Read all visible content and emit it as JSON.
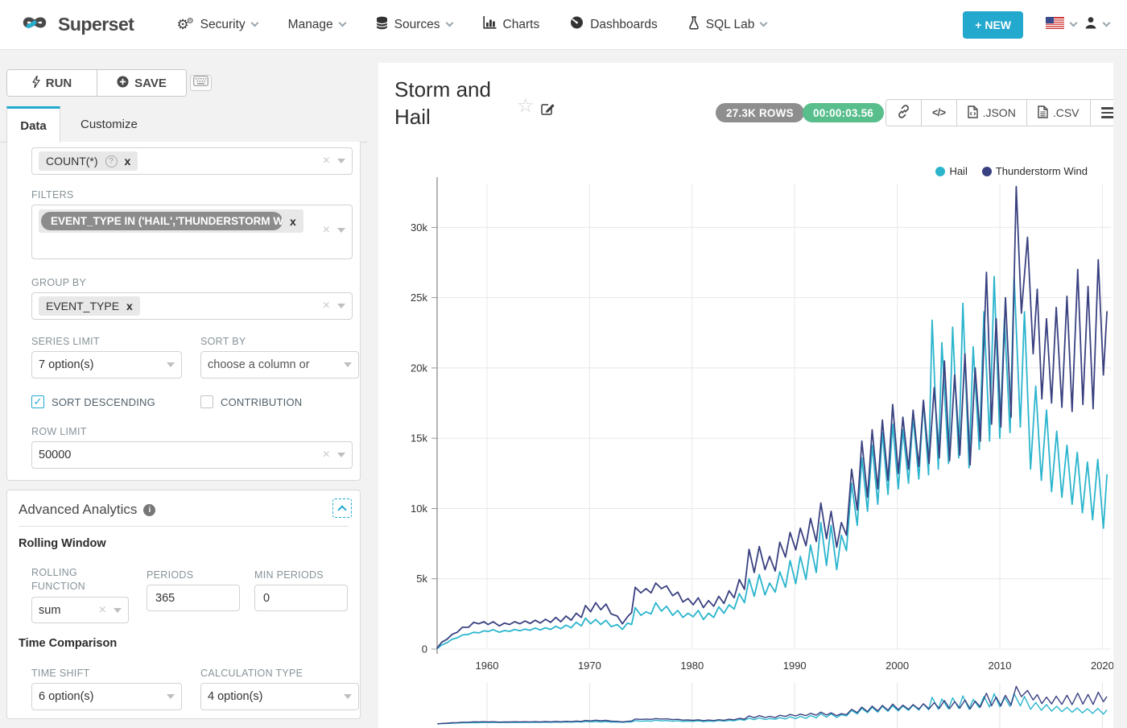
{
  "navbar": {
    "brand": "Superset",
    "security": "Security",
    "manage": "Manage",
    "sources": "Sources",
    "charts": "Charts",
    "dashboards": "Dashboards",
    "sql_lab": "SQL Lab",
    "new_button": "+ NEW"
  },
  "toolbar": {
    "run_label": "RUN",
    "save_label": "SAVE"
  },
  "tabs": {
    "data": "Data",
    "customize": "Customize"
  },
  "query": {
    "metric_chip": "COUNT(*)",
    "filters_label": "FILTERS",
    "filter_chip": "EVENT_TYPE IN ('HAIL','THUNDERSTORM WI",
    "group_by_label": "GROUP BY",
    "group_by_chip": "EVENT_TYPE",
    "series_limit_label": "SERIES LIMIT",
    "series_limit_value": "7 option(s)",
    "sort_by_label": "SORT BY",
    "sort_by_placeholder": "choose a column or",
    "sort_descending_label": "SORT DESCENDING",
    "contribution_label": "CONTRIBUTION",
    "row_limit_label": "ROW LIMIT",
    "row_limit_value": "50000"
  },
  "advanced": {
    "title": "Advanced Analytics",
    "rolling_window_title": "Rolling Window",
    "rolling_function_label": "ROLLING FUNCTION",
    "rolling_function_value": "sum",
    "periods_label": "PERIODS",
    "periods_value": "365",
    "min_periods_label": "MIN PERIODS",
    "min_periods_value": "0",
    "time_comparison_title": "Time Comparison",
    "time_shift_label": "TIME SHIFT",
    "time_shift_value": "6 option(s)",
    "calculation_type_label": "CALCULATION TYPE",
    "calculation_type_value": "4 option(s)"
  },
  "chart_header": {
    "title": "Storm and Hail",
    "rows_badge": "27.3K ROWS",
    "duration_badge": "00:00:03.56",
    "json_button": ".JSON",
    "csv_button": ".CSV"
  },
  "icons": {
    "star": "☆",
    "code": "</>"
  },
  "colors": {
    "accent": "#23a8ce",
    "hail_line": "#2bb5cd",
    "thunderstorm_line": "#3a4180",
    "badge_green": "#57be8c",
    "badge_gray": "#8e8e8e"
  },
  "chart_data": {
    "type": "line",
    "title": "Storm and Hail",
    "xlabel": "",
    "ylabel": "",
    "grid": true,
    "legend_position": "top-right",
    "xlim": [
      1955.1,
      2020.6
    ],
    "ylim": [
      0,
      33100
    ],
    "x_tick_years": [
      1960,
      1970,
      1980,
      1990,
      2000,
      2010,
      2020
    ],
    "x_tick_labels": [
      "1960",
      "1970",
      "1980",
      "1990",
      "2000",
      "2010",
      "2020"
    ],
    "y_tick_values": [
      0,
      5000,
      10000,
      15000,
      20000,
      25000,
      30000
    ],
    "y_tick_labels": [
      "0",
      "5k",
      "10k",
      "15k",
      "20k",
      "25k",
      "30k"
    ],
    "series": [
      {
        "name": "Hail",
        "color": "#2bb5cd",
        "points": [
          [
            1955.15,
            50
          ],
          [
            1955.6,
            300
          ],
          [
            1956.1,
            450
          ],
          [
            1956.6,
            700
          ],
          [
            1957.1,
            800
          ],
          [
            1957.6,
            1000
          ],
          [
            1958.2,
            1050
          ],
          [
            1958.7,
            1200
          ],
          [
            1959.2,
            1150
          ],
          [
            1959.7,
            1300
          ],
          [
            1960.1,
            1250
          ],
          [
            1960.6,
            1380
          ],
          [
            1961.2,
            1200
          ],
          [
            1961.7,
            1320
          ],
          [
            1962.2,
            1260
          ],
          [
            1962.7,
            1400
          ],
          [
            1963.2,
            1300
          ],
          [
            1963.7,
            1420
          ],
          [
            1964.2,
            1340
          ],
          [
            1964.7,
            1500
          ],
          [
            1965.2,
            1360
          ],
          [
            1965.7,
            1520
          ],
          [
            1966.2,
            1400
          ],
          [
            1966.7,
            1620
          ],
          [
            1967.2,
            1450
          ],
          [
            1967.7,
            1700
          ],
          [
            1968.2,
            1520
          ],
          [
            1968.7,
            1900
          ],
          [
            1969.2,
            1650
          ],
          [
            1969.6,
            2200
          ],
          [
            1970.1,
            1800
          ],
          [
            1970.6,
            2100
          ],
          [
            1971.1,
            1750
          ],
          [
            1971.6,
            2050
          ],
          [
            1972.1,
            1600
          ],
          [
            1972.7,
            1750
          ],
          [
            1973.2,
            1400
          ],
          [
            1973.7,
            1850
          ],
          [
            1974.1,
            1750
          ],
          [
            1974.45,
            2950
          ],
          [
            1975.0,
            2400
          ],
          [
            1975.5,
            2650
          ],
          [
            1976.0,
            2500
          ],
          [
            1976.45,
            3300
          ],
          [
            1977.0,
            2700
          ],
          [
            1977.5,
            3050
          ],
          [
            1978.1,
            2400
          ],
          [
            1978.6,
            2750
          ],
          [
            1979.1,
            2250
          ],
          [
            1979.6,
            2550
          ],
          [
            1980.1,
            2300
          ],
          [
            1980.6,
            2750
          ],
          [
            1981.1,
            2100
          ],
          [
            1981.6,
            2550
          ],
          [
            1982.1,
            2250
          ],
          [
            1982.6,
            3000
          ],
          [
            1983.1,
            2550
          ],
          [
            1983.6,
            3150
          ],
          [
            1984.1,
            2850
          ],
          [
            1984.6,
            3950
          ],
          [
            1985.1,
            3300
          ],
          [
            1985.55,
            5000
          ],
          [
            1986.05,
            3750
          ],
          [
            1986.55,
            5300
          ],
          [
            1987.1,
            3850
          ],
          [
            1987.55,
            4700
          ],
          [
            1988.1,
            4050
          ],
          [
            1988.55,
            5500
          ],
          [
            1989.1,
            4400
          ],
          [
            1989.55,
            6300
          ],
          [
            1990.1,
            4650
          ],
          [
            1990.55,
            6600
          ],
          [
            1991.1,
            4950
          ],
          [
            1991.55,
            7400
          ],
          [
            1992.1,
            5450
          ],
          [
            1992.55,
            9000
          ],
          [
            1993.1,
            5950
          ],
          [
            1993.55,
            8800
          ],
          [
            1994.1,
            5650
          ],
          [
            1994.55,
            8100
          ],
          [
            1995.05,
            7000
          ],
          [
            1995.55,
            11800
          ],
          [
            1996.1,
            8800
          ],
          [
            1996.55,
            13600
          ],
          [
            1997.1,
            9800
          ],
          [
            1997.55,
            14500
          ],
          [
            1998.1,
            10300
          ],
          [
            1998.55,
            15400
          ],
          [
            1999.1,
            11000
          ],
          [
            1999.55,
            16000
          ],
          [
            2000.1,
            11400
          ],
          [
            2000.55,
            15600
          ],
          [
            2001.1,
            11800
          ],
          [
            2001.55,
            16500
          ],
          [
            2002.1,
            12100
          ],
          [
            2002.55,
            17600
          ],
          [
            2003.05,
            12400
          ],
          [
            2003.4,
            23400
          ],
          [
            2004.0,
            12800
          ],
          [
            2004.35,
            21800
          ],
          [
            2005.0,
            13200
          ],
          [
            2005.4,
            22900
          ],
          [
            2006.0,
            13600
          ],
          [
            2006.4,
            24600
          ],
          [
            2007.0,
            12900
          ],
          [
            2007.4,
            21500
          ],
          [
            2008.0,
            14200
          ],
          [
            2008.45,
            24000
          ],
          [
            2009.0,
            14800
          ],
          [
            2009.45,
            26500
          ],
          [
            2010.0,
            15000
          ],
          [
            2010.45,
            23500
          ],
          [
            2011.0,
            15400
          ],
          [
            2011.4,
            26500
          ],
          [
            2012.0,
            15800
          ],
          [
            2012.4,
            24000
          ],
          [
            2013.0,
            12800
          ],
          [
            2013.5,
            18700
          ],
          [
            2014.05,
            12000
          ],
          [
            2014.55,
            17000
          ],
          [
            2015.05,
            11200
          ],
          [
            2015.55,
            15500
          ],
          [
            2016.05,
            10800
          ],
          [
            2016.55,
            14500
          ],
          [
            2017.05,
            10300
          ],
          [
            2017.55,
            14000
          ],
          [
            2018.05,
            9700
          ],
          [
            2018.55,
            13300
          ],
          [
            2019.05,
            9200
          ],
          [
            2019.55,
            13500
          ],
          [
            2020.1,
            8600
          ],
          [
            2020.45,
            12400
          ]
        ]
      },
      {
        "name": "Thunderstorm Wind",
        "color": "#3a4180",
        "points": [
          [
            1955.15,
            80
          ],
          [
            1955.6,
            500
          ],
          [
            1956.1,
            700
          ],
          [
            1956.6,
            1050
          ],
          [
            1957.1,
            1200
          ],
          [
            1957.6,
            1550
          ],
          [
            1958.2,
            1550
          ],
          [
            1958.7,
            1900
          ],
          [
            1959.2,
            1800
          ],
          [
            1959.7,
            1950
          ],
          [
            1960.1,
            1750
          ],
          [
            1960.6,
            1950
          ],
          [
            1961.2,
            1650
          ],
          [
            1961.7,
            1850
          ],
          [
            1962.2,
            1750
          ],
          [
            1962.7,
            1950
          ],
          [
            1963.2,
            1800
          ],
          [
            1963.7,
            2000
          ],
          [
            1964.2,
            1820
          ],
          [
            1964.7,
            2050
          ],
          [
            1965.2,
            1850
          ],
          [
            1965.7,
            2120
          ],
          [
            1966.2,
            1900
          ],
          [
            1966.7,
            2250
          ],
          [
            1967.2,
            1950
          ],
          [
            1967.7,
            2350
          ],
          [
            1968.2,
            2050
          ],
          [
            1968.7,
            2550
          ],
          [
            1969.2,
            2250
          ],
          [
            1969.6,
            3100
          ],
          [
            1970.1,
            2650
          ],
          [
            1970.6,
            3300
          ],
          [
            1971.1,
            2800
          ],
          [
            1971.6,
            3200
          ],
          [
            1972.1,
            2500
          ],
          [
            1972.7,
            2350
          ],
          [
            1973.2,
            1800
          ],
          [
            1973.7,
            2300
          ],
          [
            1974.1,
            2600
          ],
          [
            1974.45,
            4400
          ],
          [
            1975.0,
            4000
          ],
          [
            1975.5,
            4300
          ],
          [
            1976.0,
            4000
          ],
          [
            1976.45,
            4700
          ],
          [
            1977.0,
            4300
          ],
          [
            1977.5,
            4500
          ],
          [
            1978.1,
            3800
          ],
          [
            1978.6,
            4050
          ],
          [
            1979.1,
            3350
          ],
          [
            1979.6,
            3600
          ],
          [
            1980.1,
            3150
          ],
          [
            1980.6,
            3650
          ],
          [
            1981.1,
            2950
          ],
          [
            1981.6,
            3450
          ],
          [
            1982.1,
            3050
          ],
          [
            1982.6,
            3750
          ],
          [
            1983.1,
            3250
          ],
          [
            1983.6,
            4150
          ],
          [
            1984.1,
            3650
          ],
          [
            1984.6,
            4950
          ],
          [
            1985.1,
            4250
          ],
          [
            1985.55,
            7100
          ],
          [
            1986.05,
            5450
          ],
          [
            1986.55,
            7300
          ],
          [
            1987.1,
            5650
          ],
          [
            1987.55,
            6600
          ],
          [
            1988.1,
            5550
          ],
          [
            1988.55,
            7600
          ],
          [
            1989.1,
            6550
          ],
          [
            1989.55,
            8300
          ],
          [
            1990.1,
            7050
          ],
          [
            1990.55,
            8600
          ],
          [
            1991.1,
            7350
          ],
          [
            1991.55,
            9300
          ],
          [
            1992.1,
            7650
          ],
          [
            1992.55,
            10400
          ],
          [
            1993.1,
            7850
          ],
          [
            1993.55,
            9800
          ],
          [
            1994.1,
            7250
          ],
          [
            1994.55,
            9000
          ],
          [
            1995.05,
            8100
          ],
          [
            1995.55,
            12800
          ],
          [
            1996.1,
            9900
          ],
          [
            1996.55,
            14800
          ],
          [
            1997.1,
            10800
          ],
          [
            1997.55,
            15600
          ],
          [
            1998.1,
            11400
          ],
          [
            1998.55,
            16300
          ],
          [
            1999.1,
            12000
          ],
          [
            1999.55,
            17400
          ],
          [
            2000.1,
            12500
          ],
          [
            2000.55,
            16500
          ],
          [
            2001.1,
            12800
          ],
          [
            2001.55,
            17000
          ],
          [
            2002.1,
            13000
          ],
          [
            2002.55,
            17700
          ],
          [
            2003.1,
            13200
          ],
          [
            2003.6,
            18600
          ],
          [
            2004.1,
            13600
          ],
          [
            2004.6,
            20500
          ],
          [
            2005.1,
            13400
          ],
          [
            2005.6,
            19500
          ],
          [
            2006.1,
            13800
          ],
          [
            2006.6,
            21000
          ],
          [
            2007.1,
            13100
          ],
          [
            2007.6,
            20000
          ],
          [
            2008.1,
            14800
          ],
          [
            2008.7,
            26800
          ],
          [
            2009.2,
            16000
          ],
          [
            2009.65,
            23500
          ],
          [
            2010.1,
            15800
          ],
          [
            2010.55,
            25000
          ],
          [
            2011.1,
            16500
          ],
          [
            2011.6,
            32900
          ],
          [
            2012.1,
            23900
          ],
          [
            2012.7,
            29300
          ],
          [
            2013.25,
            21000
          ],
          [
            2013.65,
            25600
          ],
          [
            2014.1,
            17800
          ],
          [
            2014.55,
            23500
          ],
          [
            2015.05,
            17500
          ],
          [
            2015.5,
            24300
          ],
          [
            2016.05,
            17200
          ],
          [
            2016.55,
            25100
          ],
          [
            2017.05,
            16900
          ],
          [
            2017.6,
            27000
          ],
          [
            2018.1,
            17400
          ],
          [
            2018.6,
            25800
          ],
          [
            2019.1,
            17100
          ],
          [
            2019.6,
            27700
          ],
          [
            2020.1,
            19500
          ],
          [
            2020.45,
            24000
          ]
        ]
      }
    ]
  }
}
